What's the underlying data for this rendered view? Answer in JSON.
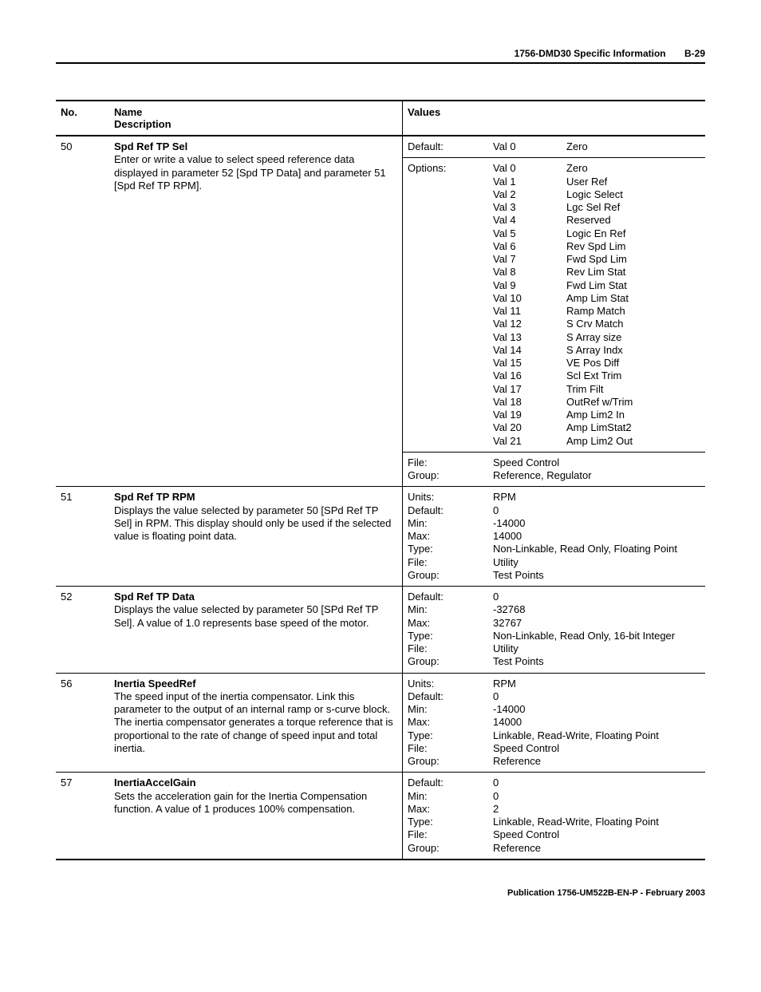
{
  "header": {
    "doc": "1756-DMD30 Specific Information",
    "page": "B-29"
  },
  "columns": {
    "no": "No.",
    "name1": "Name",
    "name2": "Description",
    "values": "Values"
  },
  "rows": [
    {
      "no": "50",
      "name": "Spd Ref TP Sel",
      "desc": "Enter or write a value to select speed reference data displayed in parameter 52 [Spd TP Data] and parameter 51 [Spd Ref TP RPM].",
      "default_lbl": "Default:",
      "default_val": "Val 0",
      "default_txt": "Zero",
      "options_lbl": "Options:",
      "opts": [
        [
          "Val 0",
          "Zero"
        ],
        [
          "Val 1",
          "User Ref"
        ],
        [
          "Val 2",
          "Logic Select"
        ],
        [
          "Val 3",
          "Lgc Sel Ref"
        ],
        [
          "Val 4",
          "Reserved"
        ],
        [
          "Val 5",
          "Logic En Ref"
        ],
        [
          "Val 6",
          "Rev Spd Lim"
        ],
        [
          "Val 7",
          "Fwd Spd Lim"
        ],
        [
          "Val 8",
          "Rev Lim Stat"
        ],
        [
          "Val 9",
          "Fwd Lim Stat"
        ],
        [
          "Val 10",
          "Amp Lim Stat"
        ],
        [
          "Val 11",
          "Ramp Match"
        ],
        [
          "Val 12",
          "S Crv Match"
        ],
        [
          "Val 13",
          "S Array size"
        ],
        [
          "Val 14",
          "S Array Indx"
        ],
        [
          "Val 15",
          "VE Pos Diff"
        ],
        [
          "Val 16",
          "Scl Ext Trim"
        ],
        [
          "Val 17",
          "Trim Filt"
        ],
        [
          "Val 18",
          "OutRef w/Trim"
        ],
        [
          "Val 19",
          "Amp Lim2 In"
        ],
        [
          "Val 20",
          "Amp LimStat2"
        ],
        [
          "Val 21",
          "Amp Lim2 Out"
        ]
      ],
      "file_lbl": "File:",
      "file_val": "Speed Control",
      "group_lbl": "Group:",
      "group_val": "Reference, Regulator"
    },
    {
      "no": "51",
      "name": "Spd Ref TP RPM",
      "desc": "Displays the value selected by parameter 50 [SPd Ref TP Sel] in RPM.  This display should only be used if the selected value is floating point data.",
      "pairs": [
        [
          "Units:",
          "RPM"
        ],
        [
          "Default:",
          "0"
        ],
        [
          "Min:",
          "-14000"
        ],
        [
          "Max:",
          "14000"
        ],
        [
          "Type:",
          "Non-Linkable, Read Only, Floating Point"
        ],
        [
          "File:",
          "Utility"
        ],
        [
          "Group:",
          "Test Points"
        ]
      ]
    },
    {
      "no": "52",
      "name": "Spd Ref TP Data",
      "desc": "Displays the value selected by parameter 50 [SPd Ref TP Sel].  A value of 1.0 represents base speed of the motor.",
      "pairs": [
        [
          "Default:",
          "0"
        ],
        [
          "Min:",
          "-32768"
        ],
        [
          "Max:",
          "32767"
        ],
        [
          "Type:",
          "Non-Linkable, Read Only, 16-bit Integer"
        ],
        [
          "File:",
          "Utility"
        ],
        [
          "Group:",
          "Test Points"
        ]
      ]
    },
    {
      "no": "56",
      "name": "Inertia SpeedRef",
      "desc": "The speed input of the inertia compensator.  Link this parameter to the output of an internal ramp or s-curve block.  The inertia compensator generates a torque reference that is proportional to the rate of change of  speed input and total inertia.",
      "pairs": [
        [
          "Units:",
          "RPM"
        ],
        [
          "Default:",
          "0"
        ],
        [
          "Min:",
          "-14000"
        ],
        [
          "Max:",
          "14000"
        ],
        [
          "Type:",
          "Linkable, Read-Write,  Floating Point"
        ],
        [
          "File:",
          "Speed Control"
        ],
        [
          "Group:",
          "Reference"
        ]
      ]
    },
    {
      "no": "57",
      "name": "InertiaAccelGain",
      "desc": "Sets the acceleration gain for the Inertia Compensation function. A value of 1 produces 100% compensation.",
      "pairs": [
        [
          "Default:",
          "0"
        ],
        [
          "Min:",
          "0"
        ],
        [
          "Max:",
          "2"
        ],
        [
          "Type:",
          "Linkable, Read-Write,  Floating Point"
        ],
        [
          "File:",
          "Speed Control"
        ],
        [
          "Group:",
          "Reference"
        ]
      ]
    }
  ],
  "footer": "Publication 1756-UM522B-EN-P - February 2003"
}
